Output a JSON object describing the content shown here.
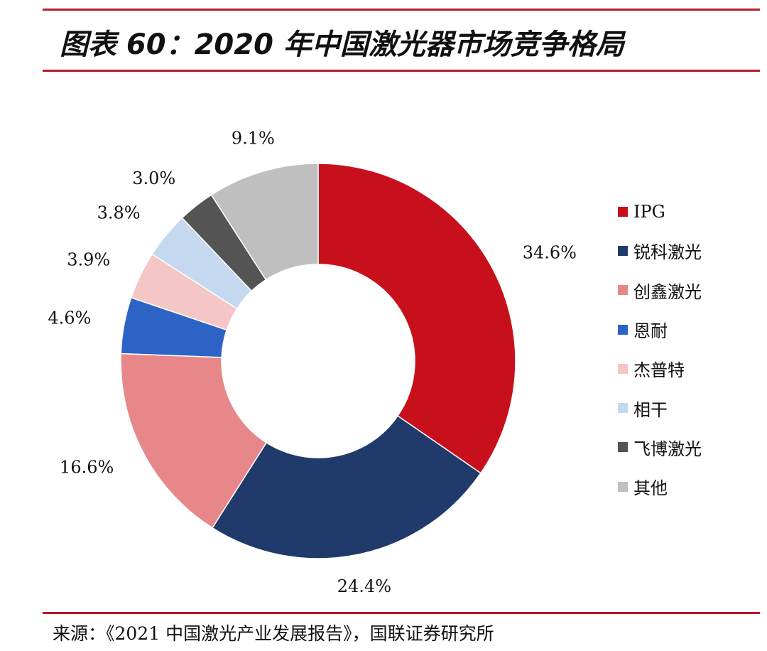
{
  "title": "图表 60：2020 年中国激光器市场竞争格局",
  "source": "来源：《2021 中国激光产业发展报告》，国联证券研究所",
  "chart_data": {
    "type": "pie",
    "donut": true,
    "title": "图表 60：2020 年中国激光器市场竞争格局",
    "legend_position": "right",
    "categories": [
      "IPG",
      "锐科激光",
      "创鑫激光",
      "恩耐",
      "杰普特",
      "相干",
      "飞博激光",
      "其他"
    ],
    "values": [
      34.6,
      24.4,
      16.6,
      4.6,
      3.9,
      3.8,
      3.0,
      9.1
    ],
    "labels": [
      "34.6%",
      "24.4%",
      "16.6%",
      "4.6%",
      "3.9%",
      "3.8%",
      "3.0%",
      "9.1%"
    ],
    "colors": [
      "#c8101c",
      "#1f3a6b",
      "#e8878a",
      "#2e63c6",
      "#f5c6c6",
      "#c4d9f0",
      "#545454",
      "#bfbfbf"
    ]
  }
}
